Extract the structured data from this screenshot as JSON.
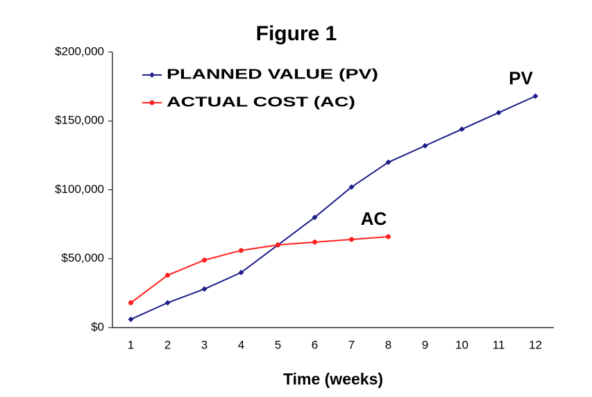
{
  "chart_data": {
    "type": "line",
    "title": "Figure 1",
    "x_label": "Time (weeks)",
    "categories": [
      "1",
      "2",
      "3",
      "4",
      "5",
      "6",
      "7",
      "8",
      "9",
      "10",
      "11",
      "12"
    ],
    "series": [
      {
        "name": "PLANNED VALUE (PV)",
        "color": "#1c1c8a",
        "marker": "diamond",
        "values": [
          6000,
          18000,
          28000,
          40000,
          60000,
          80000,
          102000,
          120000,
          132000,
          144000,
          156000,
          168000
        ]
      },
      {
        "name": "ACTUAL COST (AC)",
        "color": "#ff1f1f",
        "marker": "circle",
        "values": [
          18000,
          38000,
          49000,
          56000,
          60000,
          62000,
          64000,
          66000,
          null,
          null,
          null,
          null
        ]
      }
    ],
    "annotations": [
      {
        "text": "PV",
        "series": 0
      },
      {
        "text": "AC",
        "series": 1
      }
    ],
    "ylim": [
      0,
      200000
    ],
    "yticks": [
      {
        "value": 0,
        "label": "$0"
      },
      {
        "value": 50000,
        "label": "$50,000"
      },
      {
        "value": 100000,
        "label": "$100,000"
      },
      {
        "value": 150000,
        "label": "$150,000"
      },
      {
        "value": 200000,
        "label": "$200,000"
      }
    ],
    "grid": false,
    "legend": "upper-left"
  }
}
